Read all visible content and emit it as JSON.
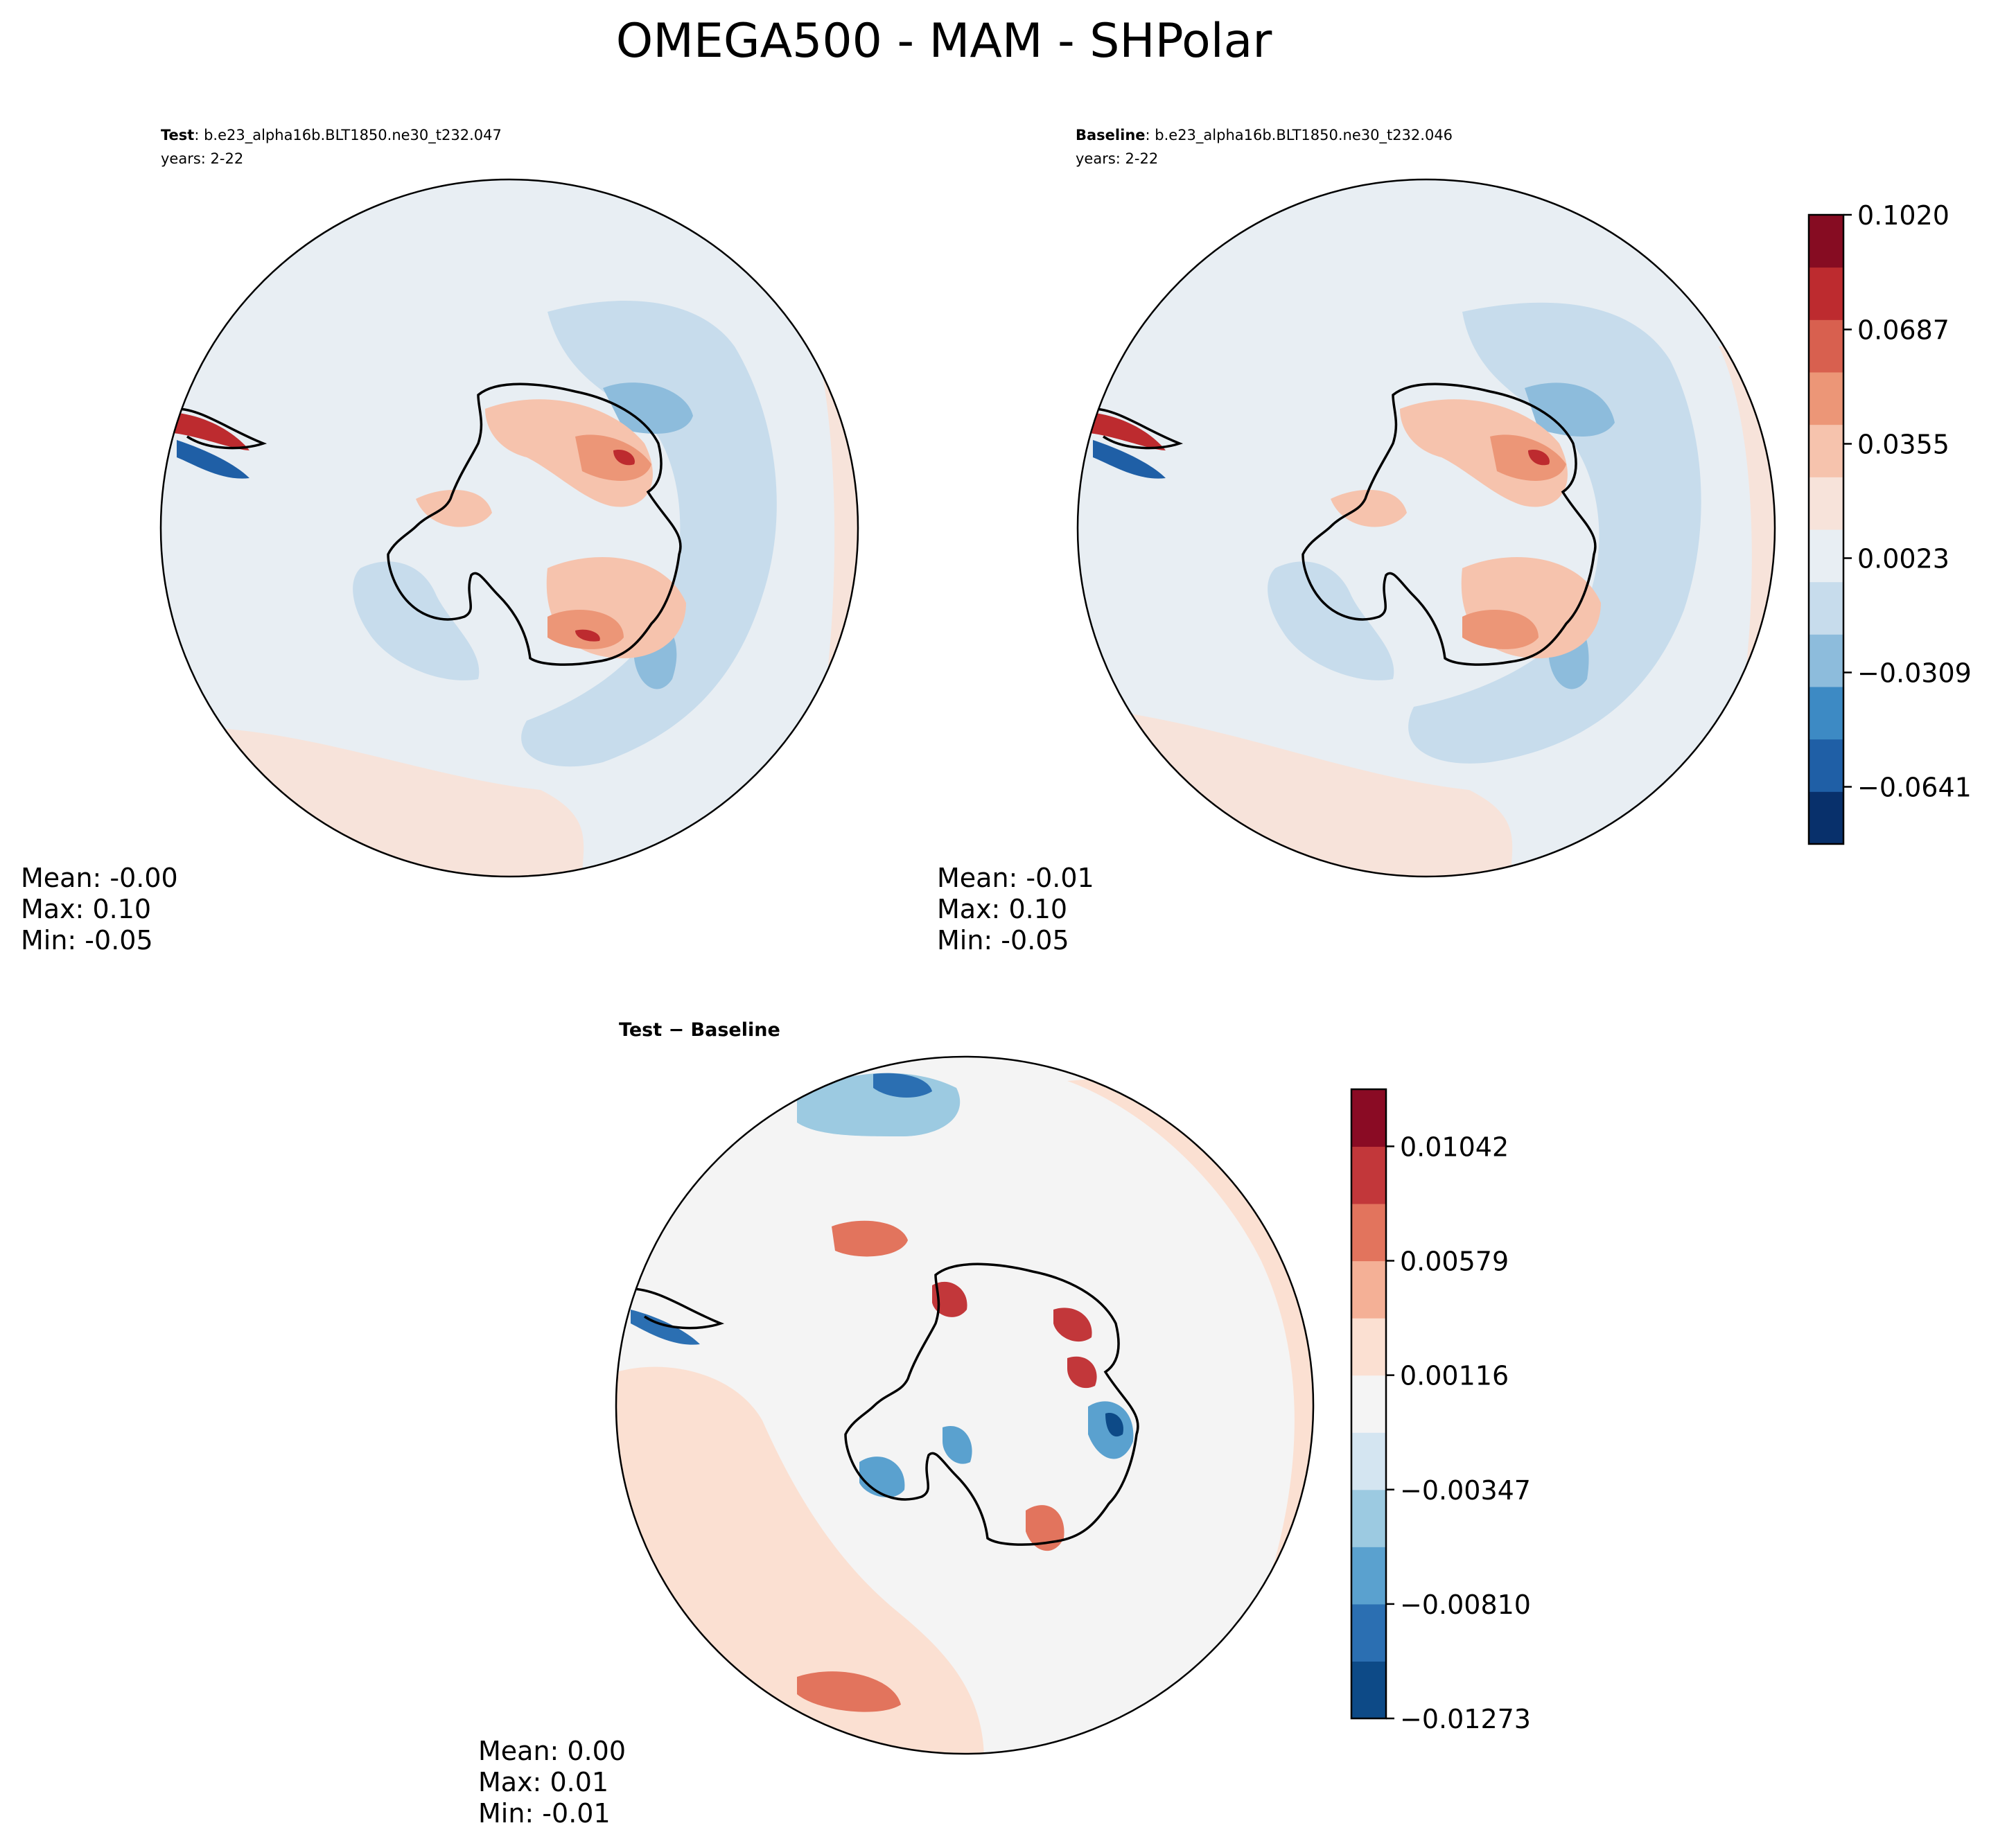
{
  "title": "OMEGA500 - MAM - SHPolar",
  "colors": {
    "ref_levels": [
      "#08306b",
      "#1f5fa6",
      "#3d8ac4",
      "#8dbcdc",
      "#c7dcec",
      "#e8eef3",
      "#f7e3da",
      "#f6c3ad",
      "#ec9677",
      "#d8604f",
      "#bd2b2f",
      "#860c22"
    ],
    "diff_levels": [
      "#0d4a87",
      "#2b6fb2",
      "#5aa1cf",
      "#9ccae1",
      "#d4e5f1",
      "#f4f4f4",
      "#fbe0d2",
      "#f4b096",
      "#e2745d",
      "#c2373a",
      "#8a0b24"
    ],
    "coast": "#000000",
    "frame": "#000000"
  },
  "panels": {
    "test": {
      "label_bold": "Test",
      "label_rest": ": b.e23_alpha16b.BLT1850.ne30_t232.047",
      "years": "years: 2-22",
      "stats": {
        "mean": "Mean: -0.00",
        "max": "Max:  0.10",
        "min": "Min: -0.05"
      }
    },
    "baseline": {
      "label_bold": "Baseline",
      "label_rest": ": b.e23_alpha16b.BLT1850.ne30_t232.046",
      "years": "years: 2-22",
      "stats": {
        "mean": "Mean: -0.01",
        "max": "Max:  0.10",
        "min": "Min: -0.05"
      }
    },
    "diff": {
      "label": "Test − Baseline",
      "stats": {
        "mean": "Mean:  0.00",
        "max": "Max:  0.01",
        "min": "Min: -0.01"
      }
    }
  },
  "chart_data": [
    {
      "type": "heatmap",
      "projection": "south-polar-stereographic",
      "title": "Test: b.e23_alpha16b.BLT1850.ne30_t232.047",
      "variable": "OMEGA500",
      "season": "MAM",
      "region": "SHPolar",
      "years": "2-22",
      "mean": -0.0,
      "max": 0.1,
      "min": -0.05,
      "colorbar_ref": "shared"
    },
    {
      "type": "heatmap",
      "projection": "south-polar-stereographic",
      "title": "Baseline: b.e23_alpha16b.BLT1850.ne30_t232.046",
      "variable": "OMEGA500",
      "season": "MAM",
      "region": "SHPolar",
      "years": "2-22",
      "mean": -0.01,
      "max": 0.1,
      "min": -0.05,
      "colorbar_ref": "shared"
    },
    {
      "type": "heatmap",
      "projection": "south-polar-stereographic",
      "title": "Test − Baseline",
      "mean": 0.0,
      "max": 0.01,
      "min": -0.01
    }
  ],
  "colorbars": {
    "ref": {
      "range": [
        -0.0807,
        0.102
      ],
      "tick_values": [
        0.102,
        0.0687,
        0.0355,
        0.0023,
        -0.0309,
        -0.0641
      ],
      "tick_labels": [
        "0.1020",
        "0.0687",
        "0.0355",
        "0.0023",
        "−0.0309",
        "−0.0641"
      ]
    },
    "diff": {
      "range": [
        -0.01273,
        0.01273
      ],
      "tick_values": [
        0.01042,
        0.00579,
        0.00116,
        -0.00347,
        -0.0081,
        -0.01273
      ],
      "tick_labels": [
        "0.01042",
        "0.00579",
        "0.00116",
        "−0.00347",
        "−0.00810",
        "−0.01273"
      ]
    }
  }
}
